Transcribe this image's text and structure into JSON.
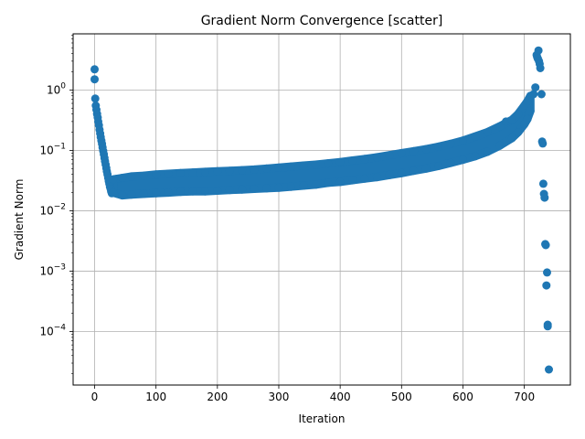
{
  "chart_data": {
    "type": "scatter",
    "title": "Gradient Norm Convergence [scatter]",
    "xlabel": "Iteration",
    "ylabel": "Gradient Norm",
    "xlim": [
      -35,
      775
    ],
    "ylim": [
      1.3e-05,
      8.5
    ],
    "yscale": "log",
    "grid": true,
    "marker_color": "#1f77b4",
    "x_ticks": [
      {
        "value": 0,
        "label": "0"
      },
      {
        "value": 100,
        "label": "100"
      },
      {
        "value": 200,
        "label": "200"
      },
      {
        "value": 300,
        "label": "300"
      },
      {
        "value": 400,
        "label": "400"
      },
      {
        "value": 500,
        "label": "500"
      },
      {
        "value": 600,
        "label": "600"
      },
      {
        "value": 700,
        "label": "700"
      }
    ],
    "y_ticks": [
      {
        "value": 0.0001,
        "base": "10",
        "exp": "−4"
      },
      {
        "value": 0.001,
        "base": "10",
        "exp": "−3"
      },
      {
        "value": 0.01,
        "base": "10",
        "exp": "−2"
      },
      {
        "value": 0.1,
        "base": "10",
        "exp": "−1"
      },
      {
        "value": 1,
        "base": "10",
        "exp": "0"
      }
    ],
    "series": [
      {
        "points": [
          [
            0,
            2.2
          ],
          [
            0,
            1.5
          ],
          [
            1,
            0.72
          ],
          [
            2,
            0.55
          ],
          [
            3,
            0.47
          ],
          [
            4,
            0.4
          ],
          [
            5,
            0.35
          ],
          [
            6,
            0.3
          ],
          [
            7,
            0.26
          ],
          [
            8,
            0.22
          ],
          [
            9,
            0.19
          ],
          [
            10,
            0.165
          ],
          [
            11,
            0.145
          ],
          [
            12,
            0.128
          ],
          [
            13,
            0.112
          ],
          [
            14,
            0.098
          ],
          [
            15,
            0.086
          ],
          [
            16,
            0.075
          ],
          [
            17,
            0.066
          ],
          [
            18,
            0.058
          ],
          [
            19,
            0.051
          ],
          [
            20,
            0.045
          ],
          [
            21,
            0.04
          ],
          [
            22,
            0.035
          ],
          [
            23,
            0.031
          ],
          [
            24,
            0.028
          ],
          [
            25,
            0.025
          ],
          [
            26,
            0.023
          ],
          [
            27,
            0.021
          ],
          [
            28,
            0.0195
          ],
          [
            30,
            0.033
          ],
          [
            30,
            0.02
          ],
          [
            45,
            0.035
          ],
          [
            45,
            0.018
          ],
          [
            60,
            0.037
          ],
          [
            60,
            0.0185
          ],
          [
            80,
            0.038
          ],
          [
            80,
            0.019
          ],
          [
            100,
            0.04
          ],
          [
            100,
            0.0195
          ],
          [
            120,
            0.041
          ],
          [
            120,
            0.02
          ],
          [
            140,
            0.042
          ],
          [
            140,
            0.0205
          ],
          [
            160,
            0.043
          ],
          [
            160,
            0.021
          ],
          [
            180,
            0.044
          ],
          [
            180,
            0.021
          ],
          [
            200,
            0.045
          ],
          [
            200,
            0.0215
          ],
          [
            220,
            0.046
          ],
          [
            220,
            0.022
          ],
          [
            240,
            0.047
          ],
          [
            240,
            0.0225
          ],
          [
            260,
            0.048
          ],
          [
            260,
            0.023
          ],
          [
            280,
            0.05
          ],
          [
            280,
            0.0235
          ],
          [
            300,
            0.052
          ],
          [
            300,
            0.024
          ],
          [
            320,
            0.054
          ],
          [
            320,
            0.025
          ],
          [
            340,
            0.056
          ],
          [
            340,
            0.026
          ],
          [
            360,
            0.058
          ],
          [
            360,
            0.027
          ],
          [
            380,
            0.061
          ],
          [
            380,
            0.029
          ],
          [
            400,
            0.064
          ],
          [
            400,
            0.03
          ],
          [
            420,
            0.068
          ],
          [
            420,
            0.032
          ],
          [
            440,
            0.072
          ],
          [
            440,
            0.034
          ],
          [
            460,
            0.077
          ],
          [
            460,
            0.036
          ],
          [
            480,
            0.083
          ],
          [
            480,
            0.039
          ],
          [
            500,
            0.09
          ],
          [
            500,
            0.042
          ],
          [
            520,
            0.097
          ],
          [
            520,
            0.046
          ],
          [
            540,
            0.105
          ],
          [
            540,
            0.05
          ],
          [
            560,
            0.115
          ],
          [
            560,
            0.055
          ],
          [
            580,
            0.128
          ],
          [
            580,
            0.062
          ],
          [
            600,
            0.145
          ],
          [
            600,
            0.07
          ],
          [
            620,
            0.17
          ],
          [
            620,
            0.08
          ],
          [
            640,
            0.2
          ],
          [
            640,
            0.095
          ],
          [
            660,
            0.25
          ],
          [
            660,
            0.12
          ],
          [
            670,
            0.3
          ],
          [
            680,
            0.32
          ],
          [
            680,
            0.16
          ],
          [
            690,
            0.4
          ],
          [
            690,
            0.2
          ],
          [
            700,
            0.55
          ],
          [
            700,
            0.27
          ],
          [
            705,
            0.65
          ],
          [
            705,
            0.33
          ],
          [
            710,
            0.8
          ],
          [
            710,
            0.45
          ],
          [
            715,
            0.85
          ],
          [
            718,
            1.1
          ],
          [
            720,
            3.8
          ],
          [
            721,
            3.5
          ],
          [
            722,
            3.3
          ],
          [
            723,
            4.5
          ],
          [
            724,
            3.0
          ],
          [
            725,
            2.7
          ],
          [
            726,
            2.3
          ],
          [
            728,
            0.85
          ],
          [
            729,
            0.14
          ],
          [
            730,
            0.13
          ],
          [
            731,
            0.028
          ],
          [
            732,
            0.019
          ],
          [
            733,
            0.0165
          ],
          [
            734,
            0.0028
          ],
          [
            735,
            0.0027
          ],
          [
            736,
            0.00058
          ],
          [
            737,
            0.00095
          ],
          [
            738,
            0.00013
          ],
          [
            738,
            0.000122
          ],
          [
            740,
            2.35e-05
          ]
        ]
      }
    ]
  }
}
